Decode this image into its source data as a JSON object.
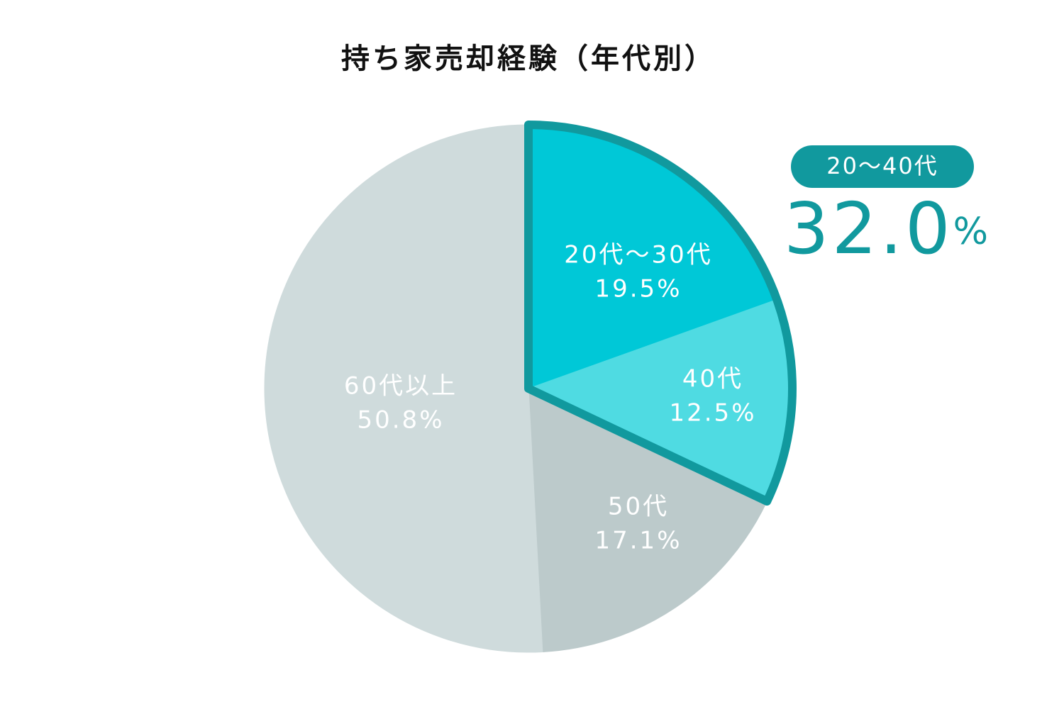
{
  "chart_data": {
    "type": "pie",
    "title": "持ち家売却経験（年代別）",
    "categories": [
      "20代〜30代",
      "40代",
      "50代",
      "60代以上"
    ],
    "values": [
      19.5,
      12.5,
      17.1,
      50.8
    ],
    "value_labels": [
      "19.5%",
      "12.5%",
      "17.1%",
      "50.8%"
    ],
    "colors": [
      "#00c8d7",
      "#4fdbe2",
      "#bccacb",
      "#cfdbdc"
    ],
    "annotation": {
      "label": "20〜40代",
      "value": 32.0,
      "value_label": "32.0%",
      "color": "#11999e"
    }
  }
}
